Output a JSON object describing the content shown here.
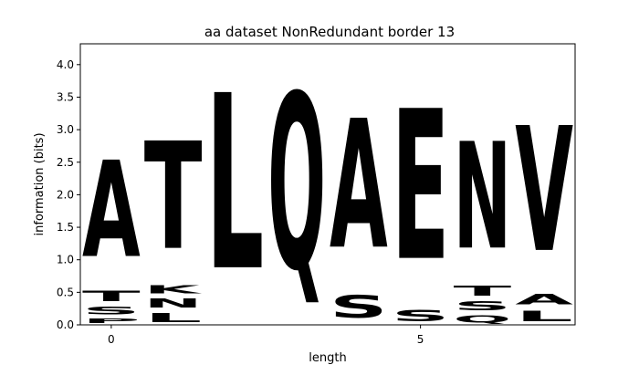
{
  "chart_data": {
    "type": "sequence-logo",
    "title": "aa dataset NonRedundant border 13",
    "xlabel": "length",
    "ylabel": "information (bits)",
    "xlim": [
      -0.5,
      7.5
    ],
    "ylim": [
      0,
      4.32
    ],
    "x_ticks": [
      {
        "value": 0,
        "label": "0"
      },
      {
        "value": 5,
        "label": "5"
      }
    ],
    "y_ticks": [
      {
        "value": 0.0,
        "label": "0.0"
      },
      {
        "value": 0.5,
        "label": "0.5"
      },
      {
        "value": 1.0,
        "label": "1.0"
      },
      {
        "value": 1.5,
        "label": "1.5"
      },
      {
        "value": 2.0,
        "label": "2.0"
      },
      {
        "value": 2.5,
        "label": "2.5"
      },
      {
        "value": 3.0,
        "label": "3.0"
      },
      {
        "value": 3.5,
        "label": "3.5"
      },
      {
        "value": 4.0,
        "label": "4.0"
      }
    ],
    "color_map": {
      "A": "#000000",
      "L": "#000000",
      "V": "#000000",
      "P": "#000000",
      "T": "#22d22f",
      "S": "#22d22f",
      "K": "#0b1fbd",
      "N": "#d61ec1",
      "Q": "#d61ec1",
      "E": "#d40f17"
    },
    "positions": [
      {
        "x": 0,
        "letters": [
          {
            "char": "P",
            "height": 0.12
          },
          {
            "char": "S",
            "height": 0.19
          },
          {
            "char": "T",
            "height": 0.26
          },
          {
            "char": "A",
            "height": 2.38
          }
        ]
      },
      {
        "x": 1,
        "letters": [
          {
            "char": "L",
            "height": 0.22
          },
          {
            "char": "N",
            "height": 0.22
          },
          {
            "char": "K",
            "height": 0.2
          },
          {
            "char": "T",
            "height": 2.65
          }
        ]
      },
      {
        "x": 2,
        "letters": [
          {
            "char": "L",
            "height": 4.32
          }
        ]
      },
      {
        "x": 3,
        "letters": [
          {
            "char": "Q",
            "height": 4.32
          }
        ]
      },
      {
        "x": 4,
        "letters": [
          {
            "char": "S",
            "height": 0.55
          },
          {
            "char": "A",
            "height": 3.18
          }
        ]
      },
      {
        "x": 5,
        "letters": [
          {
            "char": "S",
            "height": 0.27
          },
          {
            "char": "E",
            "height": 3.7
          }
        ]
      },
      {
        "x": 6,
        "letters": [
          {
            "char": "Q",
            "height": 0.18
          },
          {
            "char": "S",
            "height": 0.22
          },
          {
            "char": "T",
            "height": 0.25
          },
          {
            "char": "N",
            "height": 2.63
          }
        ]
      },
      {
        "x": 7,
        "letters": [
          {
            "char": "L",
            "height": 0.26
          },
          {
            "char": "A",
            "height": 0.26
          },
          {
            "char": "V",
            "height": 3.08
          }
        ]
      }
    ]
  }
}
